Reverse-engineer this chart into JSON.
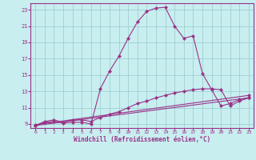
{
  "bg_color": "#c8eef0",
  "grid_color": "#a0d0d0",
  "line_color": "#993388",
  "xlim": [
    -0.5,
    23.5
  ],
  "ylim": [
    8.5,
    23.8
  ],
  "xticks": [
    0,
    1,
    2,
    3,
    4,
    5,
    6,
    7,
    8,
    9,
    10,
    11,
    12,
    13,
    14,
    15,
    16,
    17,
    18,
    19,
    20,
    21,
    22,
    23
  ],
  "yticks": [
    9,
    11,
    13,
    15,
    17,
    19,
    21,
    23
  ],
  "xlabel": "Windchill (Refroidissement éolien,°C)",
  "lines": [
    {
      "x": [
        0,
        1,
        2,
        3,
        4,
        5,
        6,
        7,
        8,
        9,
        10,
        11,
        12,
        13,
        14,
        15,
        16,
        17,
        18,
        19,
        20,
        21,
        22,
        23
      ],
      "y": [
        8.8,
        9.2,
        9.3,
        9.1,
        9.2,
        9.2,
        9.0,
        13.3,
        15.5,
        17.3,
        19.5,
        21.5,
        22.8,
        23.2,
        23.3,
        21.0,
        19.5,
        19.8,
        15.2,
        13.2,
        11.2,
        11.5,
        12.0,
        12.2
      ]
    },
    {
      "x": [
        0,
        1,
        2,
        3,
        4,
        5,
        6,
        7,
        8,
        9,
        10,
        11,
        12,
        13,
        14,
        15,
        16,
        17,
        18,
        19,
        20,
        21,
        22,
        23
      ],
      "y": [
        8.8,
        9.3,
        9.5,
        9.2,
        9.5,
        9.5,
        9.3,
        9.8,
        10.2,
        10.5,
        11.0,
        11.5,
        11.8,
        12.2,
        12.5,
        12.8,
        13.0,
        13.2,
        13.3,
        13.3,
        13.2,
        11.2,
        11.8,
        12.2
      ]
    },
    {
      "x": [
        0,
        23
      ],
      "y": [
        8.8,
        12.2
      ]
    },
    {
      "x": [
        0,
        23
      ],
      "y": [
        8.9,
        12.5
      ]
    }
  ]
}
